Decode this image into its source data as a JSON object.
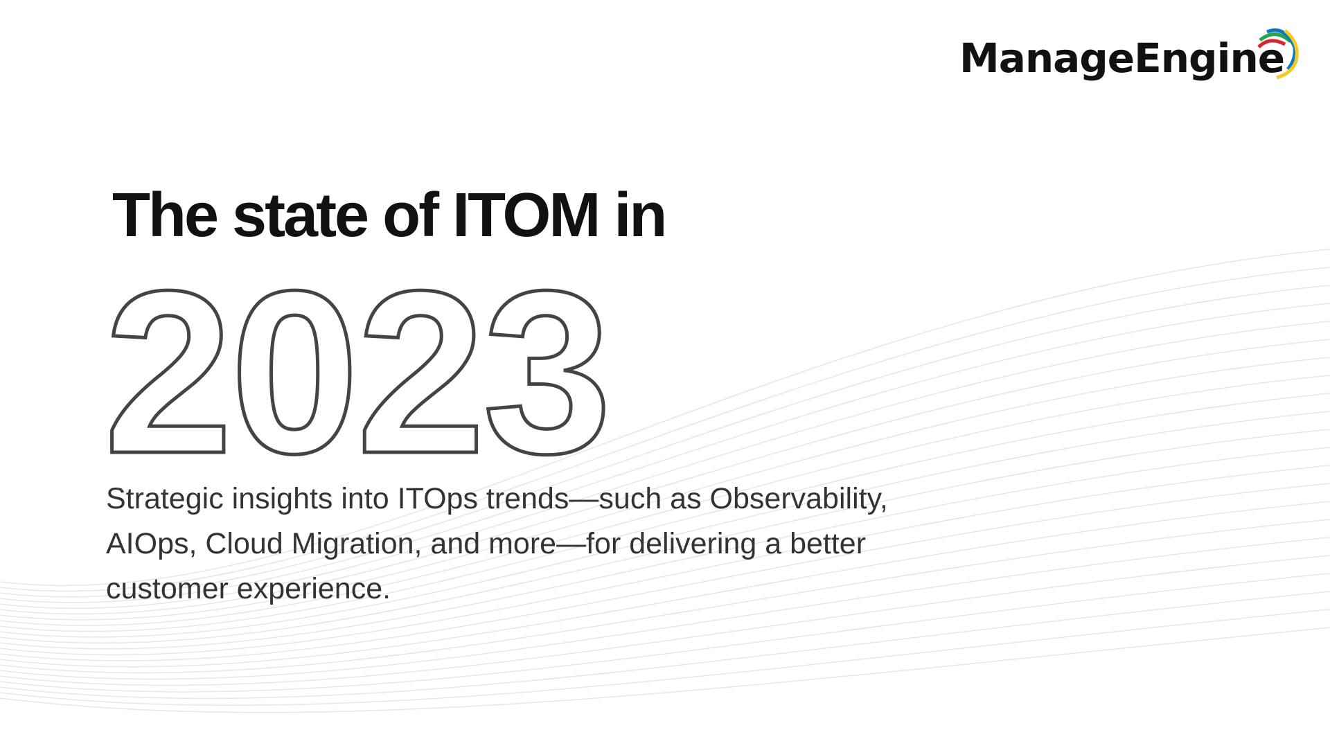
{
  "brand": {
    "name": "ManageEngine",
    "arc_colors": [
      "#d7262e",
      "#2ba24c",
      "#0a7cc2",
      "#f7c928"
    ]
  },
  "hero": {
    "title": "The state of ITOM in",
    "year": "2023",
    "subtitle": "Strategic insights into ITOps trends—such as Observability, AIOps, Cloud Migration, and more—for delivering a better customer experience."
  }
}
